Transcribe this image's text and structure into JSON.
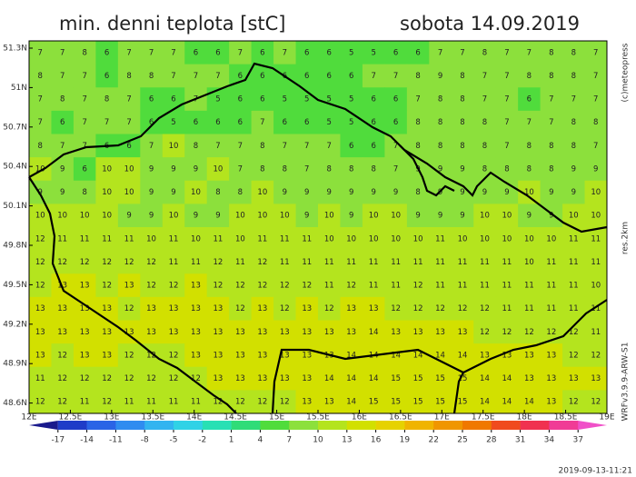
{
  "header": {
    "title": "min. denni teplota [stC]",
    "date": "sobota 14.09.2019"
  },
  "map": {
    "lat_ticks": [
      "51.3N",
      "51N",
      "50.7N",
      "50.4N",
      "50.1N",
      "49.8N",
      "49.5N",
      "49.2N",
      "48.9N",
      "48.6N"
    ],
    "lon_ticks": [
      "12E",
      "12.5E",
      "13E",
      "13.5E",
      "14E",
      "14.5E",
      "15E",
      "15.5E",
      "16E",
      "16.5E",
      "17E",
      "17.5E",
      "18E",
      "18.5E",
      "19E"
    ],
    "grid": [
      [
        7,
        7,
        8,
        6,
        7,
        7,
        7,
        6,
        6,
        7,
        6,
        7,
        6,
        6,
        5,
        5,
        6,
        6,
        7,
        7,
        8,
        7,
        7,
        8,
        8,
        7
      ],
      [
        8,
        7,
        7,
        6,
        8,
        8,
        7,
        7,
        7,
        6,
        6,
        6,
        6,
        6,
        6,
        7,
        7,
        8,
        9,
        8,
        7,
        7,
        8,
        8,
        8,
        7
      ],
      [
        7,
        8,
        7,
        8,
        7,
        6,
        6,
        7,
        5,
        6,
        6,
        5,
        5,
        5,
        5,
        6,
        6,
        7,
        8,
        8,
        7,
        7,
        6,
        7,
        7,
        7
      ],
      [
        7,
        6,
        7,
        7,
        7,
        6,
        5,
        6,
        6,
        6,
        7,
        6,
        6,
        5,
        5,
        6,
        6,
        8,
        8,
        8,
        8,
        7,
        7,
        7,
        8,
        8
      ],
      [
        8,
        7,
        7,
        6,
        6,
        7,
        10,
        8,
        7,
        7,
        8,
        7,
        7,
        7,
        6,
        6,
        7,
        8,
        8,
        8,
        8,
        7,
        8,
        8,
        8,
        7
      ],
      [
        10,
        9,
        6,
        10,
        10,
        9,
        9,
        9,
        10,
        7,
        8,
        8,
        7,
        8,
        8,
        8,
        7,
        9,
        9,
        9,
        8,
        8,
        8,
        8,
        9,
        9
      ],
      [
        9,
        9,
        8,
        10,
        10,
        9,
        9,
        10,
        8,
        8,
        10,
        9,
        9,
        9,
        9,
        9,
        9,
        8,
        9,
        9,
        9,
        9,
        10,
        9,
        9,
        10
      ],
      [
        10,
        10,
        10,
        10,
        9,
        9,
        10,
        9,
        9,
        10,
        10,
        10,
        9,
        10,
        9,
        10,
        10,
        9,
        9,
        9,
        10,
        10,
        9,
        9,
        10,
        10
      ],
      [
        12,
        11,
        11,
        11,
        11,
        10,
        11,
        10,
        11,
        10,
        11,
        11,
        11,
        10,
        10,
        10,
        10,
        10,
        11,
        10,
        10,
        10,
        10,
        10,
        11,
        11
      ],
      [
        12,
        12,
        12,
        12,
        12,
        12,
        11,
        11,
        12,
        11,
        12,
        11,
        11,
        11,
        11,
        11,
        11,
        11,
        11,
        11,
        11,
        11,
        10,
        11,
        11,
        11
      ],
      [
        12,
        13,
        13,
        12,
        13,
        12,
        12,
        13,
        12,
        12,
        12,
        12,
        12,
        11,
        12,
        11,
        11,
        12,
        11,
        11,
        11,
        11,
        11,
        11,
        11,
        10
      ],
      [
        13,
        13,
        13,
        13,
        12,
        13,
        13,
        13,
        13,
        12,
        13,
        12,
        13,
        12,
        13,
        13,
        12,
        12,
        12,
        12,
        12,
        11,
        11,
        11,
        11,
        11
      ],
      [
        13,
        13,
        13,
        13,
        13,
        13,
        13,
        13,
        13,
        13,
        13,
        13,
        13,
        13,
        13,
        14,
        13,
        13,
        13,
        13,
        12,
        12,
        12,
        12,
        12,
        11
      ],
      [
        13,
        12,
        13,
        13,
        12,
        12,
        12,
        13,
        13,
        13,
        13,
        13,
        13,
        13,
        14,
        14,
        14,
        14,
        14,
        14,
        13,
        13,
        13,
        13,
        12,
        12
      ],
      [
        11,
        12,
        12,
        12,
        12,
        12,
        12,
        12,
        13,
        13,
        13,
        13,
        13,
        14,
        14,
        14,
        15,
        15,
        15,
        15,
        14,
        14,
        13,
        13,
        13,
        13
      ],
      [
        12,
        12,
        11,
        12,
        11,
        11,
        11,
        11,
        12,
        12,
        12,
        12,
        13,
        13,
        14,
        15,
        15,
        15,
        15,
        15,
        14,
        14,
        14,
        13,
        12,
        12
      ]
    ],
    "colorbar": {
      "ticks": [
        -17,
        -14,
        -11,
        -8,
        -5,
        -2,
        1,
        4,
        7,
        10,
        13,
        16,
        19,
        22,
        25,
        28,
        31,
        34,
        37
      ],
      "colors": [
        "#1a1a8c",
        "#1f3cc8",
        "#2a64e6",
        "#2f8cf0",
        "#32b4f0",
        "#30d2e6",
        "#28e0b4",
        "#30dc78",
        "#50dc3c",
        "#8ce03c",
        "#b4e41e",
        "#d2e000",
        "#e6d200",
        "#f0b400",
        "#f09600",
        "#f07800",
        "#f04b1e",
        "#f03250",
        "#f03c96",
        "#f050c8"
      ]
    }
  },
  "footer": {
    "credit": "(c)meteopress",
    "resolution": "res.2km",
    "model": "WRFv3.9.9-ARW-S1",
    "timestamp": "2019-09-13-11:21"
  }
}
